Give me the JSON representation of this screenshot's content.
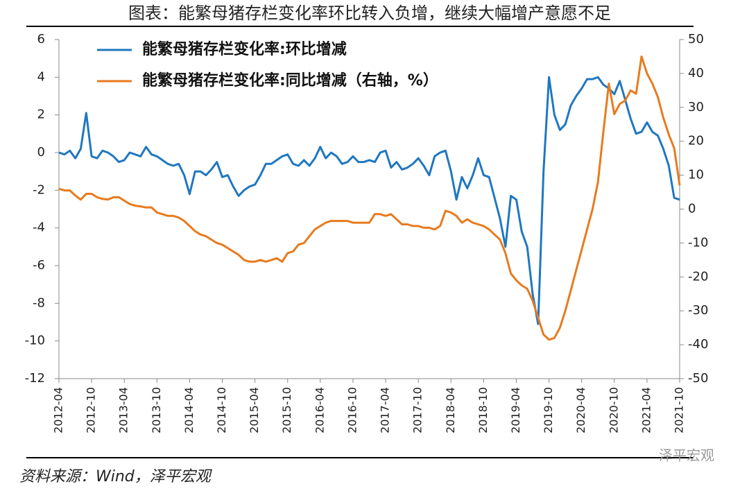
{
  "chart_data": {
    "type": "line",
    "title": "图表：能繁母猪存栏变化率环比转入负增，继续大幅增产意愿不足",
    "source": "资料来源：Wind，泽平宏观",
    "watermark": "泽平宏观",
    "categories": [
      "2012-04",
      null,
      null,
      null,
      null,
      null,
      "2012-10",
      null,
      null,
      null,
      null,
      null,
      "2013-04",
      null,
      null,
      null,
      null,
      null,
      "2013-10",
      null,
      null,
      null,
      null,
      null,
      "2014-04",
      null,
      null,
      null,
      null,
      null,
      "2014-10",
      null,
      null,
      null,
      null,
      null,
      "2015-04",
      null,
      null,
      null,
      null,
      null,
      "2015-10",
      null,
      null,
      null,
      null,
      null,
      "2016-04",
      null,
      null,
      null,
      null,
      null,
      "2016-10",
      null,
      null,
      null,
      null,
      null,
      "2017-04",
      null,
      null,
      null,
      null,
      null,
      "2017-10",
      null,
      null,
      null,
      null,
      null,
      "2018-04",
      null,
      null,
      null,
      null,
      null,
      "2018-10",
      null,
      null,
      null,
      null,
      null,
      "2019-04",
      null,
      null,
      null,
      null,
      null,
      "2019-10",
      null,
      null,
      null,
      null,
      null,
      "2020-04",
      null,
      null,
      null,
      null,
      null,
      "2020-10",
      null,
      null,
      null,
      null,
      null,
      "2021-04",
      null,
      null,
      null,
      null,
      null,
      "2021-10"
    ],
    "series": [
      {
        "name": "能繁母猪存栏变化率:环比增减",
        "color": "#1f77c0",
        "axis": "y",
        "values": [
          0,
          -0.1,
          0.1,
          -0.3,
          0.2,
          2.1,
          -0.2,
          -0.3,
          0.1,
          0,
          -0.2,
          -0.5,
          -0.4,
          0,
          -0.1,
          -0.2,
          0.3,
          -0.1,
          -0.2,
          -0.4,
          -0.6,
          -0.7,
          -0.6,
          -1.2,
          -2.2,
          -1.0,
          -1.0,
          -1.2,
          -0.9,
          -0.5,
          -1.3,
          -1.2,
          -1.8,
          -2.3,
          -2.0,
          -1.8,
          -1.7,
          -1.2,
          -0.6,
          -0.6,
          -0.4,
          -0.2,
          -0.1,
          -0.6,
          -0.7,
          -0.4,
          -0.7,
          -0.3,
          0.3,
          -0.3,
          0,
          -0.2,
          -0.6,
          -0.5,
          -0.2,
          -0.5,
          -0.5,
          -0.4,
          -0.5,
          0,
          0.1,
          -0.8,
          -0.5,
          -0.9,
          -0.8,
          -0.6,
          -0.3,
          -0.7,
          -1.2,
          -0.2,
          0,
          0.1,
          -1.0,
          -2.5,
          -1.3,
          -1.9,
          -1.2,
          -0.3,
          -1.2,
          -1.3,
          -2.4,
          -3.5,
          -5.0,
          -2.3,
          -2.5,
          -4.2,
          -5.0,
          -7.5,
          -9.1,
          -1.0,
          4.0,
          2.0,
          1.2,
          1.5,
          2.5,
          3.0,
          3.4,
          3.9,
          3.9,
          4.0,
          3.6,
          3.4,
          3.1,
          3.8,
          2.8,
          1.8,
          1.0,
          1.1,
          1.6,
          1.1,
          0.9,
          0.2,
          -0.7,
          -2.4,
          -2.5
        ]
      },
      {
        "name": "能繁母猪存栏变化率:同比增减（右轴，%）",
        "color": "#e87a1e",
        "axis": "y2",
        "values": [
          6,
          5.5,
          5.5,
          4,
          2.8,
          4.5,
          4.5,
          3.5,
          3,
          2.8,
          3.5,
          3.5,
          2.5,
          1.5,
          1,
          0.8,
          0.5,
          0.5,
          -1,
          -1.5,
          -2,
          -2,
          -2.5,
          -3.5,
          -5,
          -6.5,
          -7.5,
          -8,
          -9,
          -10,
          -10.5,
          -11.5,
          -12.5,
          -13.5,
          -15,
          -15.5,
          -15.5,
          -15,
          -15.5,
          -15,
          -14.5,
          -15.5,
          -13,
          -12.5,
          -10.5,
          -10,
          -8,
          -6,
          -5,
          -4,
          -3.5,
          -3.5,
          -3.5,
          -3.5,
          -4,
          -4,
          -4,
          -4,
          -1.5,
          -1.5,
          -2,
          -1.5,
          -3,
          -4.5,
          -4.5,
          -5,
          -5,
          -5.5,
          -5.5,
          -6,
          -5,
          -0.5,
          -1,
          -2,
          -4,
          -3,
          -4,
          -4.5,
          -5,
          -6,
          -7.5,
          -9,
          -13,
          -19,
          -21,
          -22.5,
          -23.5,
          -27,
          -32,
          -37,
          -38.5,
          -38,
          -35,
          -30,
          -24,
          -18,
          -12,
          -6,
          0,
          8,
          23,
          37,
          28,
          31,
          32,
          35,
          34,
          45,
          40,
          37,
          33,
          27,
          22,
          18,
          7
        ]
      }
    ],
    "ylim": [
      -12,
      6
    ],
    "yticks": [
      -12,
      -10,
      -8,
      -6,
      -4,
      -2,
      0,
      2,
      4,
      6
    ],
    "y2lim": [
      -50,
      50
    ],
    "y2ticks": [
      -50,
      -40,
      -30,
      -20,
      -10,
      0,
      10,
      20,
      30,
      40,
      50
    ],
    "grid": false,
    "legend": "upper left"
  }
}
